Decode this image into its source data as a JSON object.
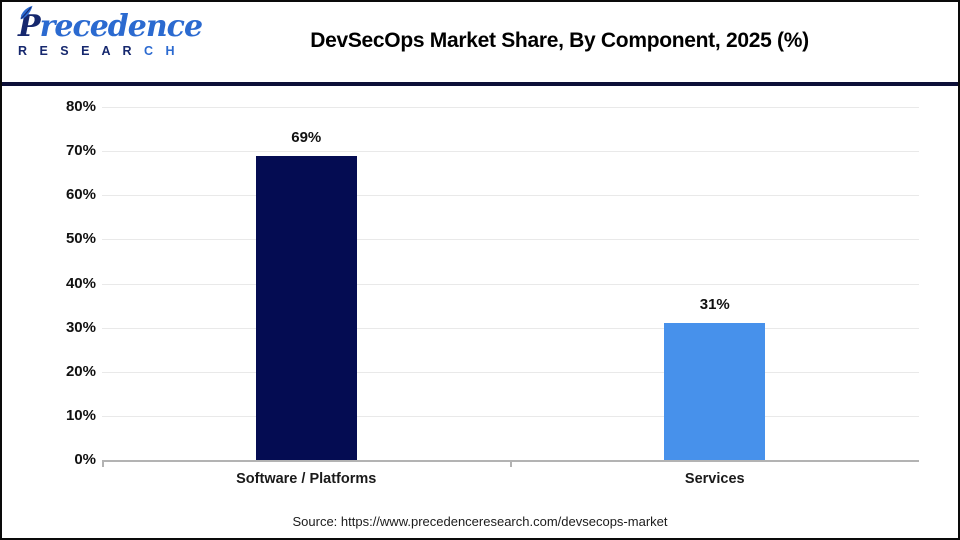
{
  "header": {
    "logo": {
      "name_p": "P",
      "name_rest": "recedence",
      "research_left": "R E S E A R ",
      "research_right": "C H"
    },
    "title": "DevSecOps Market Share, By Component, 2025 (%)"
  },
  "chart_data": {
    "type": "bar",
    "title": "DevSecOps Market Share, By Component, 2025 (%)",
    "categories": [
      "Software / Platforms",
      "Services"
    ],
    "values": [
      69,
      31
    ],
    "value_labels": [
      "69%",
      "31%"
    ],
    "bar_colors": [
      "#040c52",
      "#4791eb"
    ],
    "xlabel": "",
    "ylabel": "",
    "ylim": [
      0,
      80
    ],
    "yticks": [
      {
        "value": 0,
        "label": "0%"
      },
      {
        "value": 10,
        "label": "10%"
      },
      {
        "value": 20,
        "label": "20%"
      },
      {
        "value": 30,
        "label": "30%"
      },
      {
        "value": 40,
        "label": "40%"
      },
      {
        "value": 50,
        "label": "50%"
      },
      {
        "value": 60,
        "label": "60%"
      },
      {
        "value": 70,
        "label": "70%"
      },
      {
        "value": 80,
        "label": "80%"
      }
    ],
    "grid": "horizontal",
    "legend": "none"
  },
  "footer": {
    "source": "Source: https://www.precedenceresearch.com/devsecops-market"
  },
  "colors": {
    "bar_software": "#040c52",
    "bar_services": "#4791eb",
    "gridline": "#e9e9e9",
    "axis_line": "#b3b3b3",
    "header_divider": "#0d1038",
    "logo_navy": "#16286e",
    "logo_blue": "#2b6ad0",
    "title_text": "#000000"
  }
}
